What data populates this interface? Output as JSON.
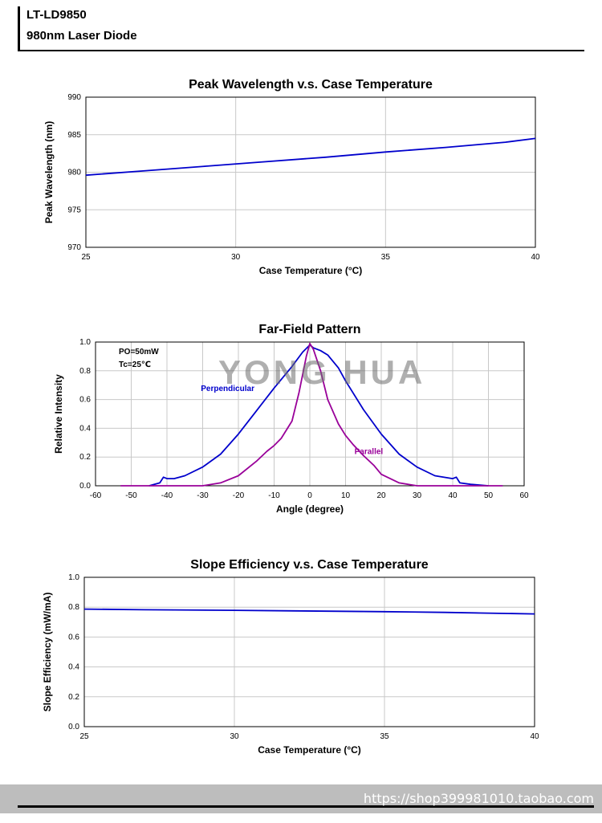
{
  "header": {
    "model": "LT-LD9850",
    "description": "980nm Laser Diode"
  },
  "watermark": "YONG HUA",
  "footer": {
    "url": "https://shop399981010.taobao.com"
  },
  "chart_data": [
    {
      "type": "line",
      "title": "Peak Wavelength v.s. Case Temperature",
      "xlabel": "Case Temperature (°C)",
      "ylabel": "Peak Wavelength (nm)",
      "xlim": [
        25,
        40
      ],
      "ylim": [
        970,
        990
      ],
      "xticks": [
        25,
        30,
        35,
        40
      ],
      "yticks": [
        970,
        975,
        980,
        985,
        990
      ],
      "grid": true,
      "series": [
        {
          "color": "#0000cc",
          "x": [
            25,
            27,
            29,
            31,
            33,
            35,
            37,
            39,
            40
          ],
          "y": [
            979.6,
            980.2,
            980.8,
            981.4,
            982.0,
            982.7,
            983.3,
            984.0,
            984.5
          ]
        }
      ]
    },
    {
      "type": "line",
      "title": "Far-Field Pattern",
      "xlabel": "Angle (degree)",
      "ylabel": "Relative Intensity",
      "xlim": [
        -60,
        60
      ],
      "ylim": [
        0,
        1.0
      ],
      "xticks": [
        -60,
        -50,
        -40,
        -30,
        -20,
        -10,
        0,
        10,
        20,
        30,
        40,
        50,
        60
      ],
      "yticks": [
        0.0,
        0.2,
        0.4,
        0.6,
        0.8,
        1.0
      ],
      "yticklabels": [
        "0.0",
        "0.2",
        "0.4",
        "0.6",
        "0.8",
        "1.0"
      ],
      "grid": true,
      "annotations": [
        "PO=50mW",
        "Tc=25℃"
      ],
      "series": [
        {
          "name": "Perpendicular",
          "color": "#0000cc",
          "x": [
            -45,
            -42,
            -41,
            -40,
            -38,
            -35,
            -30,
            -25,
            -20,
            -15,
            -10,
            -5,
            -2,
            0,
            1,
            3,
            5,
            8,
            10,
            15,
            20,
            25,
            30,
            35,
            40,
            41,
            42,
            45,
            50
          ],
          "y": [
            0.0,
            0.02,
            0.06,
            0.05,
            0.05,
            0.07,
            0.13,
            0.22,
            0.36,
            0.52,
            0.68,
            0.83,
            0.93,
            0.98,
            0.96,
            0.94,
            0.91,
            0.82,
            0.73,
            0.53,
            0.36,
            0.22,
            0.13,
            0.07,
            0.05,
            0.06,
            0.02,
            0.01,
            0.0
          ]
        },
        {
          "name": "Parallel",
          "color": "#990099",
          "x": [
            -53,
            -40,
            -30,
            -25,
            -20,
            -15,
            -12,
            -10,
            -8,
            -5,
            -3,
            -1,
            0,
            1,
            3,
            5,
            8,
            10,
            12,
            15,
            18,
            20,
            25,
            30,
            40,
            54
          ],
          "y": [
            0.0,
            0.0,
            0.0,
            0.02,
            0.07,
            0.17,
            0.24,
            0.28,
            0.33,
            0.45,
            0.65,
            0.9,
            0.99,
            0.95,
            0.8,
            0.6,
            0.43,
            0.35,
            0.29,
            0.21,
            0.14,
            0.08,
            0.02,
            0.0,
            0.0,
            0.0
          ]
        }
      ]
    },
    {
      "type": "line",
      "title": "Slope Efficiency v.s. Case Temperature",
      "xlabel": "Case Temperature (°C)",
      "ylabel": "Slope Efficiency (mW/mA)",
      "xlim": [
        25,
        40
      ],
      "ylim": [
        0,
        1.0
      ],
      "xticks": [
        25,
        30,
        35,
        40
      ],
      "yticks": [
        0.0,
        0.2,
        0.4,
        0.6,
        0.8,
        1.0
      ],
      "yticklabels": [
        "0.0",
        "0.2",
        "0.4",
        "0.6",
        "0.8",
        "1.0"
      ],
      "grid": true,
      "series": [
        {
          "color": "#0000cc",
          "x": [
            25,
            27,
            30,
            32,
            35,
            37,
            40
          ],
          "y": [
            0.787,
            0.783,
            0.779,
            0.775,
            0.77,
            0.765,
            0.755
          ]
        }
      ]
    }
  ]
}
